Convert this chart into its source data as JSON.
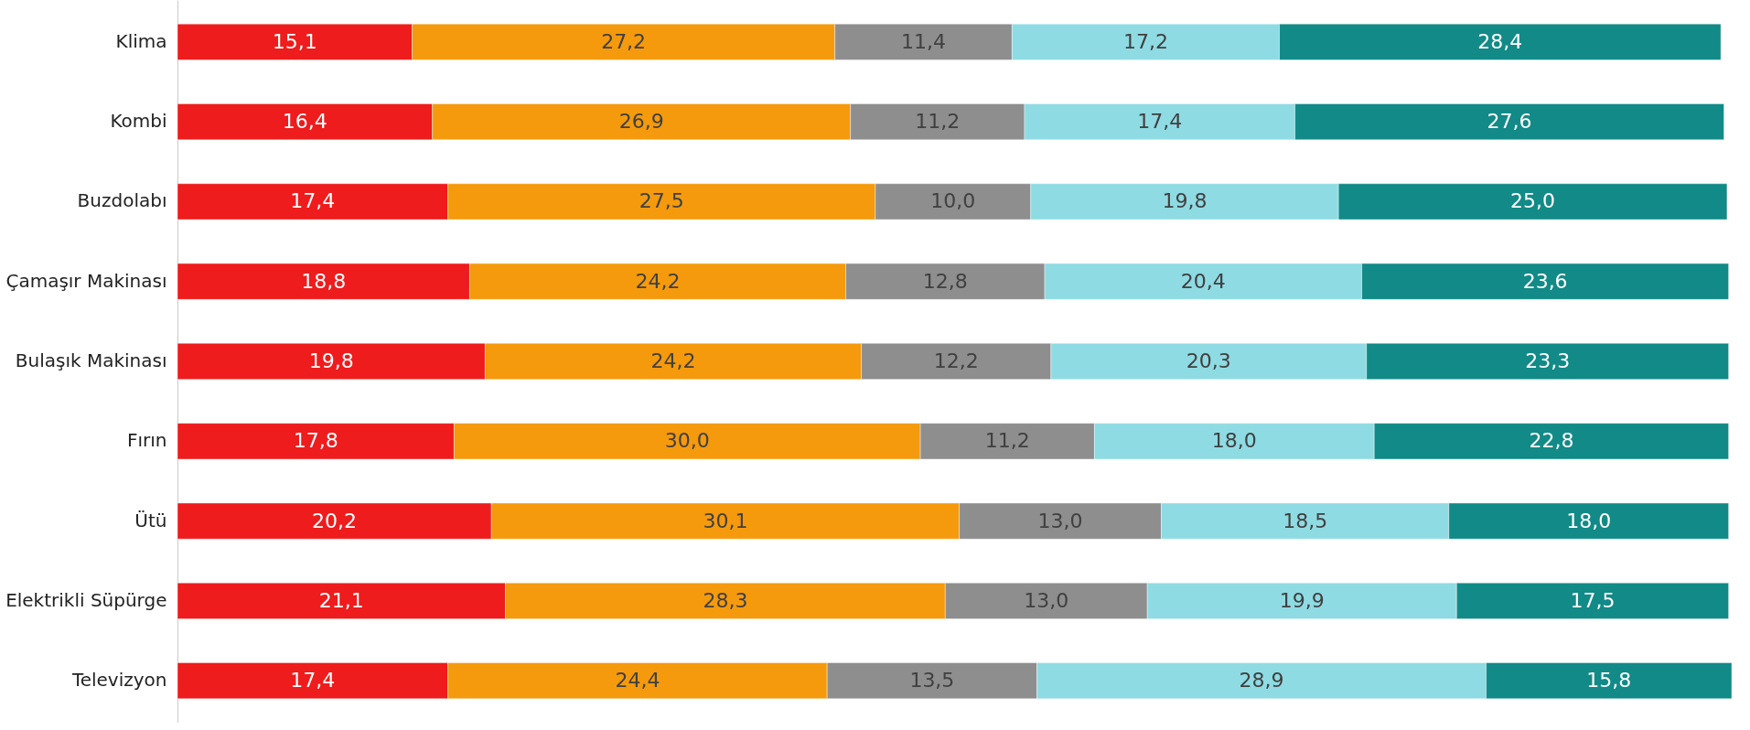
{
  "chart_data": {
    "type": "bar",
    "orientation": "horizontal",
    "stacked": true,
    "legend": false,
    "categories": [
      "Klima",
      "Kombi",
      "Buzdolabı",
      "Çamaşır Makinası",
      "Bulaşık Makinası",
      "Fırın",
      "Ütü",
      "Elektrikli Süpürge",
      "Televizyon"
    ],
    "series": [
      {
        "color": "#ee1c1c",
        "values": [
          15.1,
          16.4,
          17.4,
          18.8,
          19.8,
          17.8,
          20.2,
          21.1,
          17.4
        ],
        "value_labels": [
          "15,1",
          "16,4",
          "17,4",
          "18,8",
          "19,8",
          "17,8",
          "20,2",
          "21,1",
          "17,4"
        ]
      },
      {
        "color": "#f59a0c",
        "values": [
          27.2,
          26.9,
          27.5,
          24.2,
          24.2,
          30.0,
          30.1,
          28.3,
          24.4
        ],
        "value_labels": [
          "27,2",
          "26,9",
          "27,5",
          "24,2",
          "24,2",
          "30,0",
          "30,1",
          "28,3",
          "24,4"
        ]
      },
      {
        "color": "#8e8e8e",
        "values": [
          11.4,
          11.2,
          10.0,
          12.8,
          12.2,
          11.2,
          13.0,
          13.0,
          13.5
        ],
        "value_labels": [
          "11,4",
          "11,2",
          "10,0",
          "12,8",
          "12,2",
          "11,2",
          "13,0",
          "13,0",
          "13,5"
        ]
      },
      {
        "color": "#8fdbe3",
        "values": [
          17.2,
          17.4,
          19.8,
          20.4,
          20.3,
          18.0,
          18.5,
          19.9,
          28.9
        ],
        "value_labels": [
          "17,2",
          "17,4",
          "19,8",
          "20,4",
          "20,3",
          "18,0",
          "18,5",
          "19,9",
          "28,9"
        ]
      },
      {
        "color": "#128a87",
        "values": [
          28.4,
          27.6,
          25.0,
          23.6,
          23.3,
          22.8,
          18.0,
          17.5,
          15.8
        ],
        "value_labels": [
          "28,4",
          "27,6",
          "25,0",
          "23,6",
          "23,3",
          "22,8",
          "18,0",
          "17,5",
          "15,8"
        ]
      }
    ]
  }
}
